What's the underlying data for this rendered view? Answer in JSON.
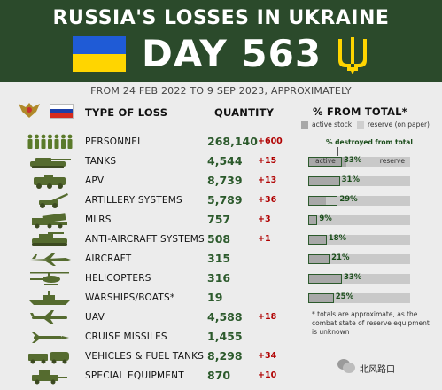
{
  "header": {
    "title": "RUSSIA'S LOSSES IN UKRAINE",
    "day_label": "DAY 563",
    "flag_colors": [
      "#1f5bd6",
      "#ffd500"
    ],
    "background": "#2b4a2b"
  },
  "subtitle": "FROM 24 FEB 2022 TO 9 SEP 2023, APPROXIMATELY",
  "columns": {
    "type": "TYPE OF LOSS",
    "quantity": "QUANTITY",
    "percent": "% FROM TOTAL*"
  },
  "legend": {
    "active": "active stock",
    "reserve": "reserve (on paper)"
  },
  "percent_note": "% destroyed from total",
  "bar_labels": {
    "active": "active",
    "reserve": "reserve"
  },
  "rows": [
    {
      "icon": "soldiers-icon",
      "name": "PERSONNEL",
      "quantity": "268,140",
      "change": "+600"
    },
    {
      "icon": "tank-icon",
      "name": "TANKS",
      "quantity": "4,544",
      "change": "+15",
      "percent_label": "33%",
      "percent": 33,
      "active_share": 37
    },
    {
      "icon": "apv-icon",
      "name": "APV",
      "quantity": "8,739",
      "change": "+13",
      "percent_label": "31%",
      "percent": 31,
      "active_share": 31
    },
    {
      "icon": "artillery-icon",
      "name": "ARTILLERY SYSTEMS",
      "quantity": "5,789",
      "change": "+36",
      "percent_label": "29%",
      "percent": 29,
      "active_share": 17
    },
    {
      "icon": "mlrs-icon",
      "name": "MLRS",
      "quantity": "757",
      "change": "+3",
      "percent_label": "9%",
      "percent": 9,
      "active_share": 9
    },
    {
      "icon": "anti-aircraft-icon",
      "name": "ANTI-AIRCRAFT SYSTEMS",
      "quantity": "508",
      "change": "+1",
      "percent_label": "18%",
      "percent": 18,
      "active_share": 18
    },
    {
      "icon": "aircraft-icon",
      "name": "AIRCRAFT",
      "quantity": "315",
      "change": "",
      "percent_label": "21%",
      "percent": 21,
      "active_share": 21
    },
    {
      "icon": "helicopter-icon",
      "name": "HELICOPTERS",
      "quantity": "316",
      "change": "",
      "percent_label": "33%",
      "percent": 33,
      "active_share": 33
    },
    {
      "icon": "warship-icon",
      "name": "WARSHIPS/BOATS*",
      "quantity": "19",
      "change": "",
      "percent_label": "25%",
      "percent": 25,
      "active_share": 25
    },
    {
      "icon": "uav-icon",
      "name": "UAV",
      "quantity": "4,588",
      "change": "+18"
    },
    {
      "icon": "cruise-missile-icon",
      "name": "CRUISE MISSILES",
      "quantity": "1,455",
      "change": ""
    },
    {
      "icon": "vehicles-icon",
      "name": "VEHICLES & FUEL TANKS",
      "quantity": "8,298",
      "change": "+34"
    },
    {
      "icon": "special-equipment-icon",
      "name": "SPECIAL EQUIPMENT",
      "quantity": "870",
      "change": "+10"
    }
  ],
  "footnote": "* totals are approximate, as the combat state of reserve equipment is unknown",
  "watermark": "北风路口"
}
